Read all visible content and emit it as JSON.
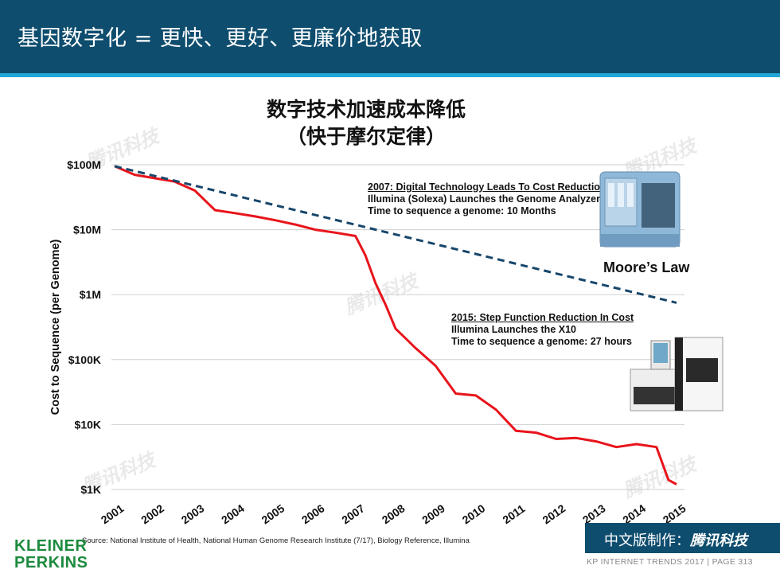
{
  "header": {
    "title": "基因数字化 = 更快、更好、更廉价地获取"
  },
  "chart_data": {
    "type": "line",
    "title": "数字技术加速成本降低",
    "subtitle": "（快于摩尔定律）",
    "xlabel": "",
    "ylabel": "Cost to Sequence (per Genome)",
    "yscale": "log",
    "ylim": [
      1000,
      100000000
    ],
    "y_ticks": [
      {
        "label": "$100M",
        "value": 100000000
      },
      {
        "label": "$10M",
        "value": 10000000
      },
      {
        "label": "$1M",
        "value": 1000000
      },
      {
        "label": "$100K",
        "value": 100000
      },
      {
        "label": "$10K",
        "value": 10000
      },
      {
        "label": "$1K",
        "value": 1000
      }
    ],
    "x_ticks": [
      "2001",
      "2002",
      "2003",
      "2004",
      "2005",
      "2006",
      "2007",
      "2008",
      "2009",
      "2010",
      "2011",
      "2012",
      "2013",
      "2014",
      "2015"
    ],
    "xlim": [
      2001,
      2015
    ],
    "grid": true,
    "series": [
      {
        "name": "",
        "color": "#e8141b",
        "style": "solid",
        "points": [
          [
            2001.0,
            95000000
          ],
          [
            2001.5,
            70000000
          ],
          [
            2002.0,
            62000000
          ],
          [
            2002.5,
            55000000
          ],
          [
            2003.0,
            40000000
          ],
          [
            2003.5,
            20000000
          ],
          [
            2004.0,
            18000000
          ],
          [
            2004.5,
            16000000
          ],
          [
            2005.0,
            14000000
          ],
          [
            2005.5,
            12000000
          ],
          [
            2006.0,
            10000000
          ],
          [
            2006.5,
            9000000
          ],
          [
            2007.0,
            8000000
          ],
          [
            2007.25,
            4000000
          ],
          [
            2007.5,
            1500000
          ],
          [
            2007.75,
            700000
          ],
          [
            2008.0,
            300000
          ],
          [
            2008.5,
            150000
          ],
          [
            2009.0,
            80000
          ],
          [
            2009.5,
            30000
          ],
          [
            2010.0,
            28000
          ],
          [
            2010.5,
            17000
          ],
          [
            2011.0,
            8000
          ],
          [
            2011.5,
            7500
          ],
          [
            2012.0,
            6000
          ],
          [
            2012.5,
            6200
          ],
          [
            2013.0,
            5500
          ],
          [
            2013.5,
            4500
          ],
          [
            2014.0,
            5000
          ],
          [
            2014.5,
            4500
          ],
          [
            2014.8,
            1400
          ],
          [
            2015.0,
            1200
          ]
        ]
      },
      {
        "name": "Moore's Law",
        "color": "#17466b",
        "style": "dashed",
        "points": [
          [
            2001.0,
            95000000
          ],
          [
            2015.0,
            750000
          ]
        ]
      }
    ],
    "annotations": [
      {
        "heading": "2007: Digital Technology Leads To Cost Reduction",
        "lines": [
          "Illumina (Solexa) Launches the Genome Analyzer",
          "Time to sequence a genome: 10 Months"
        ]
      },
      {
        "heading": "2015: Step Function Reduction In Cost",
        "lines": [
          "Illumina Launches the X10",
          "Time to sequence a genome: 27 hours"
        ]
      }
    ],
    "series_label": "Moore’s Law"
  },
  "source": "Source: National Institute of Health, National Human Genome Research Institute (7/17), Biology Reference, Illumina",
  "logo": {
    "line1": "KLEINER",
    "line2": "PERKINS"
  },
  "badge": {
    "prefix": "中文版制作：",
    "brand": "腾讯科技"
  },
  "watermark": "腾讯科技",
  "footer": {
    "text": "KP INTERNET TRENDS 2017  |  PAGE 313"
  },
  "colors": {
    "header": "#0e4d6e",
    "stripe": "#22a7d6",
    "kp_green": "#1c8a3e"
  }
}
